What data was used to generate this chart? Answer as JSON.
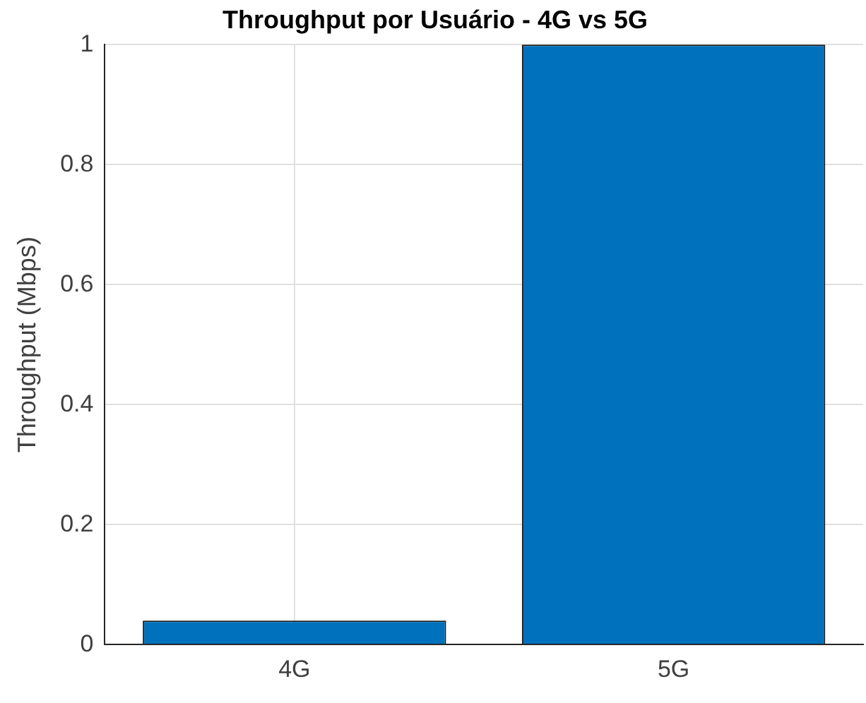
{
  "chart_data": {
    "type": "bar",
    "title": "Throughput por Usuário - 4G vs 5G",
    "ylabel": "Throughput (Mbps)",
    "categories": [
      "4G",
      "5G"
    ],
    "values": [
      0.04,
      1
    ],
    "color": "#0072bd",
    "ylim": [
      0,
      1
    ],
    "yticks": [
      0,
      0.2,
      0.4,
      0.6,
      0.8,
      1
    ],
    "grid": true,
    "legend": false
  }
}
